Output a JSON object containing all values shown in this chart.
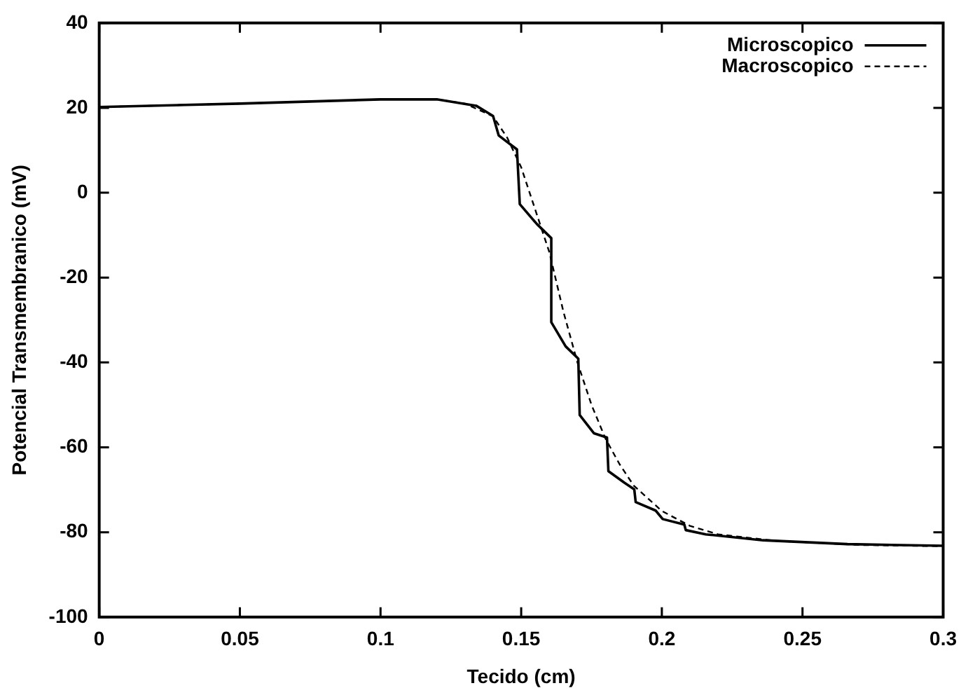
{
  "chart_data": {
    "type": "line",
    "xlabel": "Tecido (cm)",
    "ylabel": "Potencial Transmembranico (mV)",
    "xlim": [
      0,
      0.3
    ],
    "xticks": [
      0,
      0.05,
      0.1,
      0.15,
      0.2,
      0.25,
      0.3
    ],
    "ylim": [
      -100,
      40
    ],
    "yticks": [
      -100,
      -80,
      -60,
      -40,
      -20,
      0,
      20,
      40
    ],
    "grid": false,
    "legend": "top right",
    "marker": "none",
    "series": [
      {
        "name": "Microscopico",
        "color": "#000000",
        "line_style": "solid",
        "x": [
          0,
          0.05,
          0.1,
          0.12,
          0.134,
          0.14,
          0.142,
          0.1485,
          0.1495,
          0.1556,
          0.1607,
          0.1607,
          0.1658,
          0.1703,
          0.1708,
          0.1759,
          0.1805,
          0.181,
          0.1866,
          0.1902,
          0.1907,
          0.1978,
          0.2003,
          0.208,
          0.2085,
          0.2156,
          0.236,
          0.266,
          0.3
        ],
        "values": [
          20.2,
          21,
          22,
          22,
          20.5,
          18.1,
          13.5,
          10.2,
          -2.7,
          -7.4,
          -10.7,
          -30.5,
          -36.2,
          -39.1,
          -52.4,
          -56.7,
          -57.7,
          -65.6,
          -68.3,
          -69.9,
          -72.9,
          -74.9,
          -76.9,
          -78.2,
          -79.5,
          -80.5,
          -81.9,
          -82.8,
          -83.2
        ]
      },
      {
        "name": "Macroscopico",
        "color": "#000000",
        "line_style": "dashed",
        "x": [
          0,
          0.05,
          0.1,
          0.12,
          0.13,
          0.14,
          0.145,
          0.15,
          0.155,
          0.16,
          0.165,
          0.17,
          0.175,
          0.18,
          0.185,
          0.19,
          0.2,
          0.21,
          0.22,
          0.24,
          0.27,
          0.3
        ],
        "values": [
          20.2,
          21,
          22,
          22,
          21,
          18,
          13,
          6,
          -4,
          -14,
          -28,
          -40,
          -50,
          -58,
          -64,
          -69,
          -75,
          -78.5,
          -80.5,
          -82,
          -83,
          -83.3
        ]
      }
    ]
  }
}
